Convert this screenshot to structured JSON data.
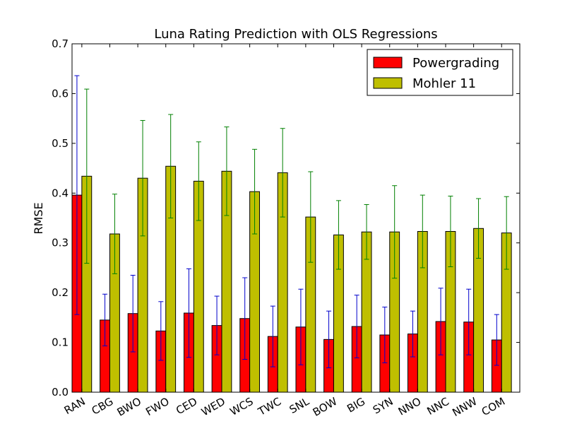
{
  "chart_data": {
    "type": "bar",
    "title": "Luna Rating Prediction with OLS Regressions",
    "xlabel": "",
    "ylabel": "RMSE",
    "ylim": [
      0,
      0.7
    ],
    "yticks": [
      "0.0",
      "0.1",
      "0.2",
      "0.3",
      "0.4",
      "0.5",
      "0.6",
      "0.7"
    ],
    "grid": false,
    "legend_position": "top-right",
    "categories": [
      "RAN",
      "CBG",
      "BWO",
      "FWO",
      "CED",
      "WED",
      "WCS",
      "TWC",
      "SNL",
      "BOW",
      "BIG",
      "SYN",
      "NNO",
      "NNC",
      "NNW",
      "COM"
    ],
    "series": [
      {
        "name": "Powergrading",
        "color": "#ff0000",
        "error_color": "#0000cc",
        "values": [
          0.396,
          0.145,
          0.158,
          0.123,
          0.159,
          0.134,
          0.148,
          0.112,
          0.131,
          0.106,
          0.132,
          0.115,
          0.117,
          0.142,
          0.141,
          0.105
        ],
        "errors": [
          0.24,
          0.052,
          0.077,
          0.059,
          0.089,
          0.059,
          0.082,
          0.061,
          0.076,
          0.057,
          0.063,
          0.056,
          0.046,
          0.067,
          0.066,
          0.051
        ]
      },
      {
        "name": "Mohler 11",
        "color": "#bfbf00",
        "error_color": "#008000",
        "values": [
          0.434,
          0.318,
          0.43,
          0.454,
          0.424,
          0.444,
          0.403,
          0.441,
          0.352,
          0.316,
          0.322,
          0.322,
          0.323,
          0.323,
          0.329,
          0.32
        ],
        "errors": [
          0.175,
          0.08,
          0.116,
          0.104,
          0.079,
          0.089,
          0.085,
          0.089,
          0.091,
          0.069,
          0.055,
          0.093,
          0.073,
          0.071,
          0.06,
          0.073
        ]
      }
    ]
  }
}
